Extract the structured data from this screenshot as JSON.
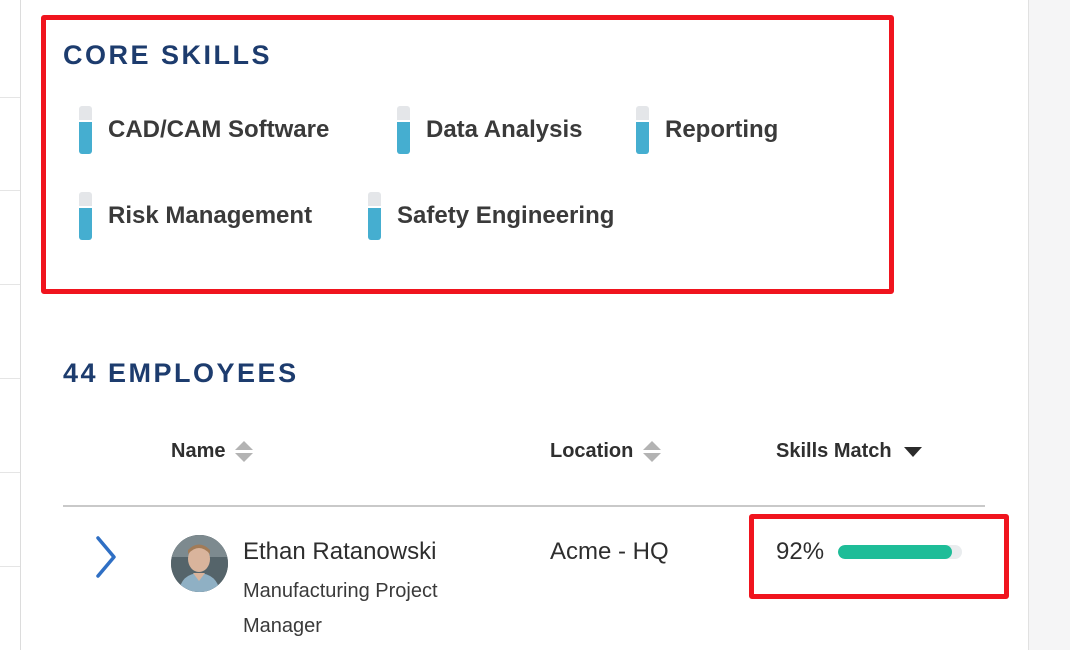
{
  "core_skills": {
    "title": "CORE SKILLS",
    "skills": [
      {
        "label": "CAD/CAM Software",
        "level": 0.7
      },
      {
        "label": "Data Analysis",
        "level": 0.7
      },
      {
        "label": "Reporting",
        "level": 0.7
      },
      {
        "label": "Risk Management",
        "level": 0.7
      },
      {
        "label": "Safety Engineering",
        "level": 0.7
      }
    ]
  },
  "employees": {
    "title": "44 EMPLOYEES",
    "columns": {
      "name": "Name",
      "location": "Location",
      "skills_match": "Skills Match"
    },
    "rows": [
      {
        "name": "Ethan Ratanowski",
        "title": "Manufacturing Project Manager",
        "location": "Acme - HQ",
        "skills_match_label": "92%",
        "skills_match": 0.92
      }
    ]
  },
  "colors": {
    "title": "#1d3c6e",
    "highlight": "#f0141e",
    "skill_fill": "#45aed0",
    "match_fill": "#1ebd98"
  },
  "icons": {
    "skill_level": "skill-level-icon",
    "sort": "sort-icon",
    "sort_desc": "sort-desc-icon",
    "expand": "chevron-right-icon",
    "avatar": "avatar"
  }
}
